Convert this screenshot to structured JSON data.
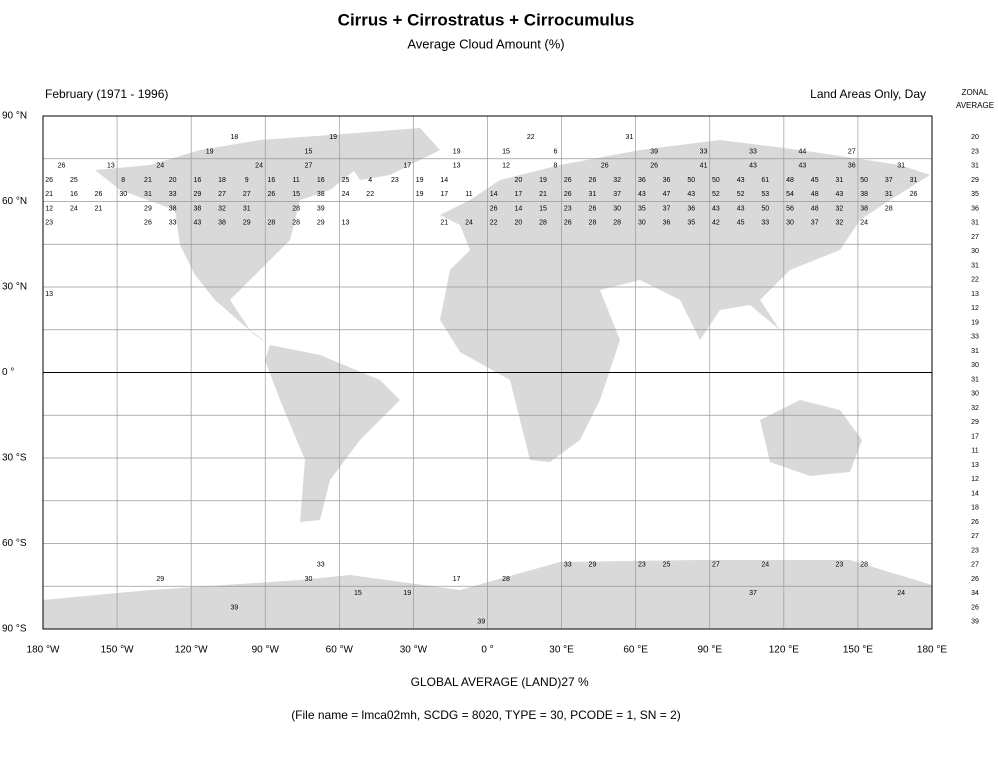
{
  "chart_data": {
    "type": "map",
    "title": "Cirrus + Cirrostratus + Cirrocumulus",
    "subtitle": "Average Cloud Amount (%)",
    "period": "February (1971 - 1996)",
    "coverage": "Land Areas Only, Day",
    "zonal_header": [
      "ZONAL",
      "AVERAGE"
    ],
    "xlim": [
      -180,
      180
    ],
    "ylim": [
      -90,
      90
    ],
    "xticks": [
      {
        "value": -180,
        "label": "180 °W"
      },
      {
        "value": -150,
        "label": "150 °W"
      },
      {
        "value": -120,
        "label": "120 °W"
      },
      {
        "value": -90,
        "label": "90 °W"
      },
      {
        "value": -60,
        "label": "60 °W"
      },
      {
        "value": -30,
        "label": "30 °W"
      },
      {
        "value": 0,
        "label": "0 °"
      },
      {
        "value": 30,
        "label": "30 °E"
      },
      {
        "value": 60,
        "label": "60 °E"
      },
      {
        "value": 90,
        "label": "90 °E"
      },
      {
        "value": 120,
        "label": "120 °E"
      },
      {
        "value": 150,
        "label": "150 °E"
      },
      {
        "value": 180,
        "label": "180 °E"
      }
    ],
    "yticks": [
      {
        "value": 90,
        "label": "90 °N"
      },
      {
        "value": 60,
        "label": "60 °N"
      },
      {
        "value": 30,
        "label": "30 °N"
      },
      {
        "value": 0,
        "label": "0 °"
      },
      {
        "value": -30,
        "label": "30 °S"
      },
      {
        "value": -60,
        "label": "60 °S"
      },
      {
        "value": -90,
        "label": "90 °S"
      }
    ],
    "ygrid_minor": [
      75,
      45,
      15,
      -15,
      -45,
      -75
    ],
    "land_color": "#d9d9d9",
    "cells": [
      {
        "lat": 82.5,
        "lon": [
          -102.5,
          -62.5,
          17.5,
          57.5
        ],
        "values": [
          18,
          19,
          22,
          31
        ]
      },
      {
        "lat": 77.5,
        "lon": [
          -112.5,
          -72.5,
          -12.5,
          7.5,
          27.5,
          67.5,
          87.5,
          107.5,
          127.5,
          147.5
        ],
        "values": [
          19,
          15,
          19,
          15,
          6,
          39,
          33,
          33,
          44,
          27
        ]
      },
      {
        "lat": 72.5,
        "lon": [
          -172.5,
          -152.5,
          -132.5,
          -92.5,
          -72.5,
          -32.5,
          -12.5,
          7.5,
          27.5,
          47.5,
          67.5,
          87.5,
          107.5,
          127.5,
          147.5,
          167.5
        ],
        "values": [
          26,
          13,
          24,
          24,
          27,
          17,
          13,
          12,
          8,
          26,
          26,
          41,
          43,
          43,
          36,
          31
        ]
      },
      {
        "lat": 67.5,
        "lon": [
          -177.5,
          -167.5,
          -147.5,
          -137.5,
          -127.5,
          -117.5,
          -107.5,
          -97.5,
          -87.5,
          -77.5,
          -67.5,
          -57.5,
          -47.5,
          -37.5,
          -27.5,
          -17.5,
          12.5,
          22.5,
          32.5,
          42.5,
          52.5,
          62.5,
          72.5,
          82.5,
          92.5,
          102.5,
          112.5,
          122.5,
          132.5,
          142.5,
          152.5,
          162.5,
          172.5
        ],
        "values": [
          26,
          25,
          8,
          21,
          20,
          16,
          18,
          9,
          16,
          11,
          16,
          25,
          4,
          23,
          19,
          14,
          20,
          19,
          26,
          26,
          32,
          36,
          36,
          50,
          50,
          43,
          61,
          48,
          45,
          31,
          50,
          37,
          31
        ]
      },
      {
        "lat": 62.5,
        "lon": [
          -177.5,
          -167.5,
          -157.5,
          -147.5,
          -137.5,
          -127.5,
          -117.5,
          -107.5,
          -97.5,
          -87.5,
          -77.5,
          -67.5,
          -57.5,
          -47.5,
          -27.5,
          -17.5,
          -7.5,
          2.5,
          12.5,
          22.5,
          32.5,
          42.5,
          52.5,
          62.5,
          72.5,
          82.5,
          92.5,
          102.5,
          112.5,
          122.5,
          132.5,
          142.5,
          152.5,
          162.5,
          172.5
        ],
        "values": [
          21,
          16,
          26,
          30,
          31,
          33,
          29,
          27,
          27,
          26,
          15,
          38,
          24,
          22,
          19,
          17,
          11,
          14,
          17,
          21,
          26,
          31,
          37,
          43,
          47,
          43,
          52,
          52,
          53,
          54,
          48,
          43,
          38,
          31,
          26
        ]
      },
      {
        "lat": 57.5,
        "lon": [
          -177.5,
          -167.5,
          -157.5,
          -137.5,
          -127.5,
          -117.5,
          -107.5,
          -97.5,
          -77.5,
          -67.5,
          2.5,
          12.5,
          22.5,
          32.5,
          42.5,
          52.5,
          62.5,
          72.5,
          82.5,
          92.5,
          102.5,
          112.5,
          122.5,
          132.5,
          142.5,
          152.5,
          162.5
        ],
        "values": [
          12,
          24,
          21,
          29,
          38,
          38,
          32,
          31,
          28,
          39,
          26,
          14,
          15,
          23,
          26,
          30,
          35,
          37,
          36,
          43,
          43,
          50,
          56,
          48,
          32,
          38,
          28
        ]
      },
      {
        "lat": 52.5,
        "lon": [
          -177.5,
          -137.5,
          -127.5,
          -117.5,
          -107.5,
          -97.5,
          -87.5,
          -77.5,
          -67.5,
          -57.5,
          -17.5,
          -7.5,
          2.5,
          12.5,
          22.5,
          32.5,
          42.5,
          52.5,
          62.5,
          72.5,
          82.5,
          92.5,
          102.5,
          112.5,
          122.5,
          132.5,
          142.5,
          152.5
        ],
        "values": [
          23,
          26,
          33,
          43,
          38,
          29,
          28,
          28,
          29,
          13,
          21,
          24,
          22,
          20,
          28,
          26,
          28,
          28,
          30,
          36,
          35,
          42,
          45,
          33,
          30,
          37,
          32,
          24
        ]
      },
      {
        "lat": 27.5,
        "lon": [
          -177.5
        ],
        "values": [
          13
        ]
      },
      {
        "lat": -67.5,
        "lon": [
          -67.5,
          32.5,
          42.5,
          62.5,
          72.5,
          92.5,
          112.5,
          142.5,
          152.5
        ],
        "values": [
          33,
          33,
          29,
          23,
          25,
          27,
          24,
          23,
          28
        ]
      },
      {
        "lat": -72.5,
        "lon": [
          -132.5,
          -72.5,
          -12.5,
          7.5
        ],
        "values": [
          29,
          30,
          17,
          28
        ]
      },
      {
        "lat": -77.5,
        "lon": [
          -52.5,
          -32.5,
          107.5,
          167.5
        ],
        "values": [
          15,
          19,
          37,
          24
        ]
      },
      {
        "lat": -82.5,
        "lon": [
          -102.5
        ],
        "values": [
          39
        ]
      },
      {
        "lat": -87.5,
        "lon": [
          -2.5
        ],
        "values": [
          39
        ]
      }
    ],
    "zonal_average": {
      "lat": [
        82.5,
        77.5,
        72.5,
        67.5,
        62.5,
        57.5,
        52.5,
        47.5,
        42.5,
        37.5,
        32.5,
        27.5,
        22.5,
        17.5,
        12.5,
        7.5,
        2.5,
        -2.5,
        -7.5,
        -12.5,
        -17.5,
        -22.5,
        -27.5,
        -32.5,
        -37.5,
        -42.5,
        -47.5,
        -52.5,
        -57.5,
        -62.5,
        -67.5,
        -72.5,
        -77.5,
        -82.5,
        -87.5
      ],
      "values": [
        20,
        23,
        31,
        29,
        35,
        36,
        31,
        27,
        30,
        31,
        22,
        13,
        12,
        19,
        33,
        31,
        30,
        31,
        30,
        32,
        29,
        17,
        11,
        13,
        12,
        14,
        18,
        26,
        27,
        23,
        27,
        26,
        34,
        26,
        39
      ]
    },
    "global_average_label": "GLOBAL AVERAGE (LAND)",
    "global_average": {
      "value": 27,
      "label": "27 %"
    },
    "footnote": "(File name = lmca02mh, SCDG = 8020, TYPE = 30, PCODE = 1, SN = 2)"
  }
}
